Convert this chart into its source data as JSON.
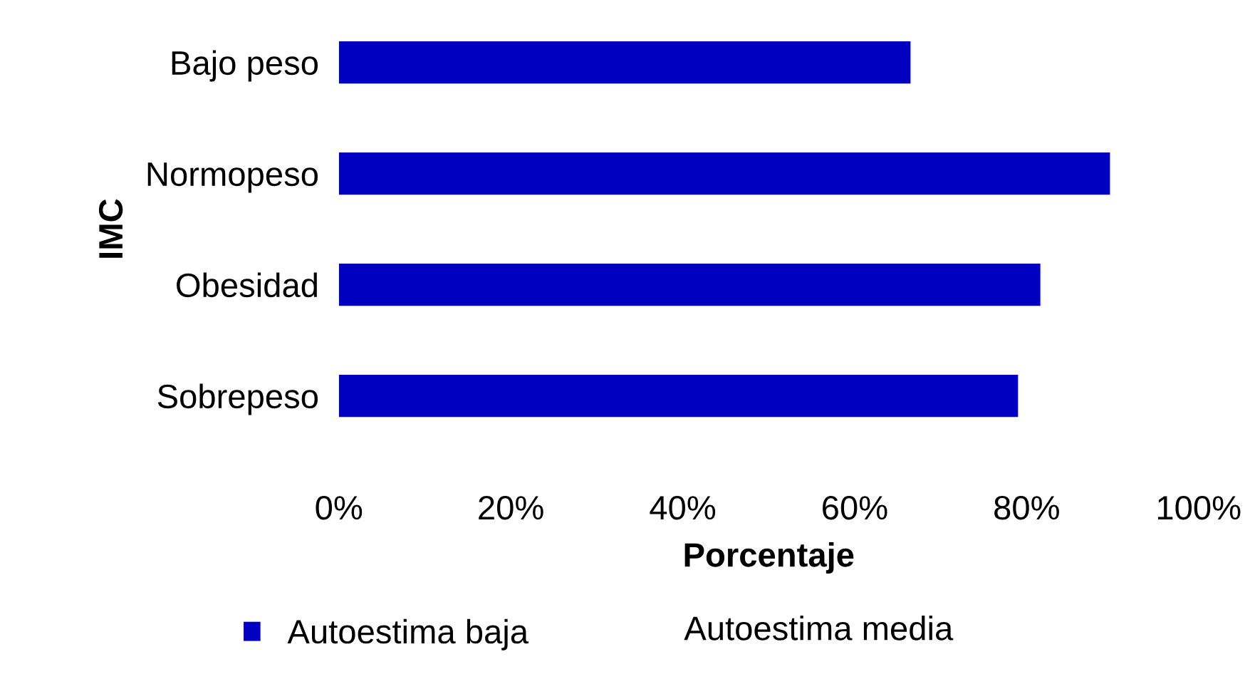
{
  "chart_data": {
    "type": "bar",
    "orientation": "horizontal",
    "xlabel": "Porcentaje",
    "ylabel": "IMC",
    "categories": [
      "Bajo peso",
      "Normopeso",
      "Obesidad",
      "Sobrepeso"
    ],
    "series": [
      {
        "name": "Autoestima baja",
        "color": "#0000c0",
        "values": [
          66.5,
          89.7,
          81.6,
          79.0
        ]
      }
    ],
    "annotations": [
      "Autoestima media"
    ],
    "xlim": [
      0,
      100
    ],
    "xticks": [
      {
        "value": 0,
        "label": "0%"
      },
      {
        "value": 20,
        "label": "20%"
      },
      {
        "value": 40,
        "label": "40%"
      },
      {
        "value": 60,
        "label": "60%"
      },
      {
        "value": 80,
        "label": "80%"
      },
      {
        "value": 100,
        "label": "100%"
      }
    ],
    "grid": false,
    "legend": "bottom"
  }
}
